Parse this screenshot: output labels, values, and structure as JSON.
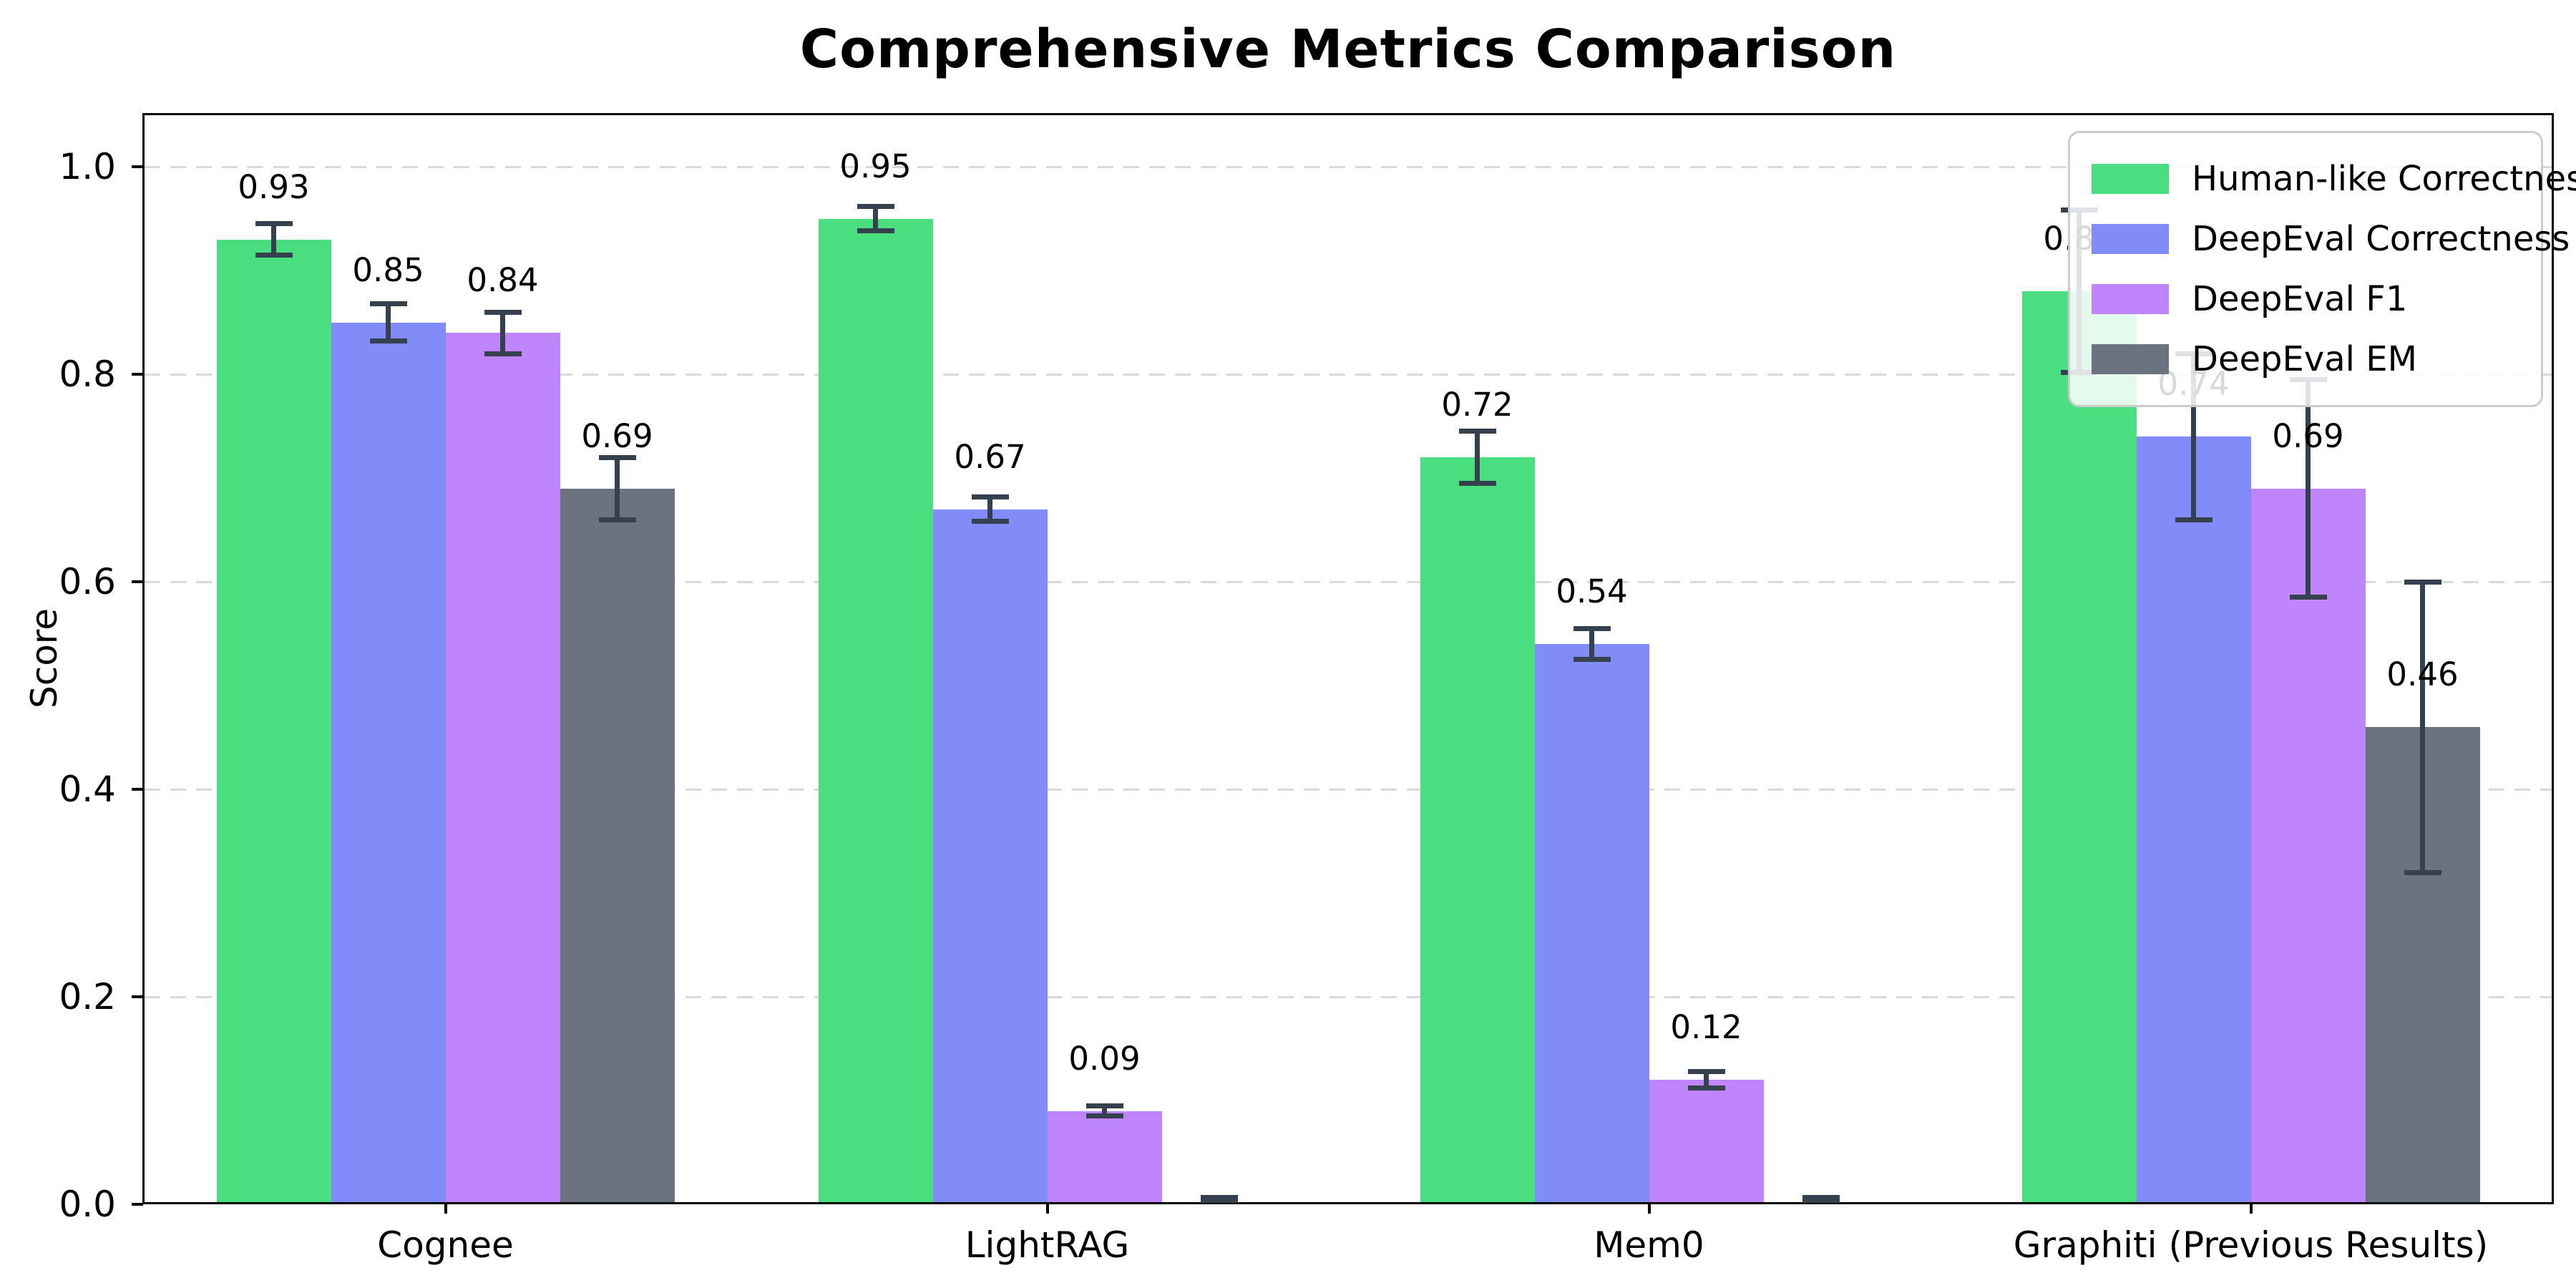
{
  "chart_data": {
    "type": "bar",
    "title": "Comprehensive Metrics Comparison",
    "ylabel": "Score",
    "xlabel": "",
    "categories": [
      "Cognee",
      "LightRAG",
      "Mem0",
      "Graphiti (Previous Results)"
    ],
    "series": [
      {
        "name": "Human-like Correctness",
        "color": "#4ade80",
        "values": [
          0.93,
          0.95,
          0.72,
          0.88
        ],
        "errors": [
          0.015,
          0.012,
          0.025,
          0.078
        ],
        "value_labels": [
          "0.93",
          "0.95",
          "0.72",
          "0.88"
        ]
      },
      {
        "name": "DeepEval Correctness",
        "color": "#818cf8",
        "values": [
          0.85,
          0.67,
          0.54,
          0.74
        ],
        "errors": [
          0.018,
          0.012,
          0.015,
          0.08
        ],
        "value_labels": [
          "0.85",
          "0.67",
          "0.54",
          "0.74"
        ]
      },
      {
        "name": "DeepEval F1",
        "color": "#c084fc",
        "values": [
          0.84,
          0.09,
          0.12,
          0.69
        ],
        "errors": [
          0.02,
          0.005,
          0.008,
          0.105
        ],
        "value_labels": [
          "0.84",
          "0.09",
          "0.12",
          "0.69"
        ]
      },
      {
        "name": "DeepEval EM",
        "color": "#6b7280",
        "values": [
          0.69,
          0.0,
          0.0,
          0.46
        ],
        "errors": [
          0.03,
          0.004,
          0.004,
          0.14
        ],
        "value_labels": [
          "0.69",
          "",
          "",
          "0.46"
        ]
      }
    ],
    "ylim": [
      0,
      1.05
    ],
    "yticks": [
      "0.0",
      "0.2",
      "0.4",
      "0.6",
      "0.8",
      "1.0"
    ],
    "grid": "horizontal-dashed",
    "legend_position": "upper right",
    "error_bar_color": "#36414f"
  },
  "legend": {
    "entries": [
      "Human-like Correctness",
      "DeepEval Correctness",
      "DeepEval F1",
      "DeepEval EM"
    ]
  }
}
